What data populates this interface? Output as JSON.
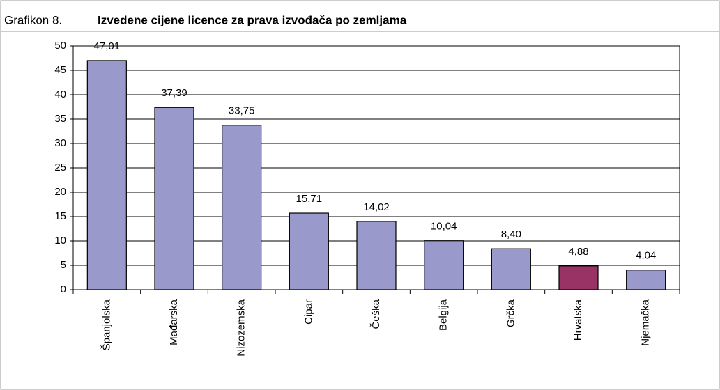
{
  "chart_data": {
    "type": "bar",
    "label": "Grafikon 8.",
    "title": "Izvedene cijene licence za prava izvođača po zemljama",
    "categories": [
      "Španjolska",
      "Mađarska",
      "Nizozemska",
      "Cipar",
      "Češka",
      "Belgija",
      "Grčka",
      "Hrvatska",
      "Njemačka"
    ],
    "values": [
      47.01,
      37.39,
      33.75,
      15.71,
      14.02,
      10.04,
      8.4,
      4.88,
      4.04
    ],
    "value_labels": [
      "47,01",
      "37,39",
      "33,75",
      "15,71",
      "14,02",
      "10,04",
      "8,40",
      "4,88",
      "4,04"
    ],
    "colors": [
      "#9999cc",
      "#9999cc",
      "#9999cc",
      "#9999cc",
      "#9999cc",
      "#9999cc",
      "#9999cc",
      "#993366",
      "#9999cc"
    ],
    "ylim": [
      0,
      50
    ],
    "yticks": [
      0,
      5,
      10,
      15,
      20,
      25,
      30,
      35,
      40,
      45,
      50
    ],
    "grid": true
  }
}
